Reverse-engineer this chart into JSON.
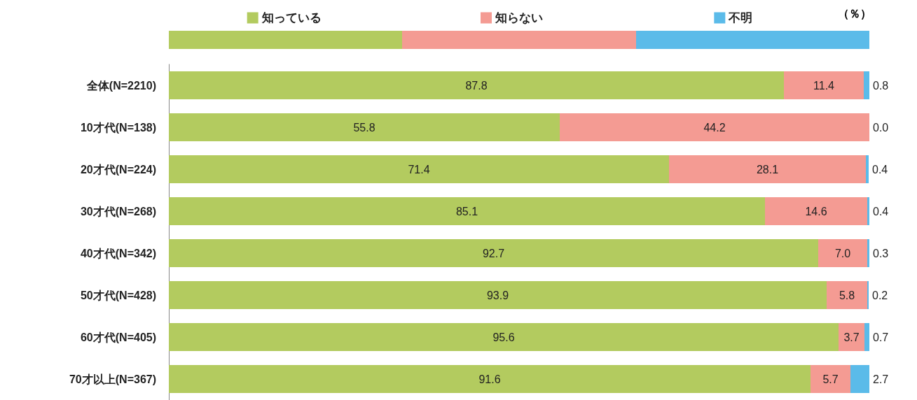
{
  "chart_data": {
    "type": "bar",
    "orientation": "horizontal",
    "stacked": true,
    "legend": "top",
    "tick_labels": "y",
    "grid": false,
    "annotations": [
      "（％）"
    ],
    "xlim": [
      0,
      100
    ],
    "categories": [
      "全体(N=2210)",
      "10才代(N=138)",
      "20才代(N=224)",
      "30才代(N=268)",
      "40才代(N=342)",
      "50才代(N=428)",
      "60才代(N=405)",
      "70才以上(N=367)"
    ],
    "series": [
      {
        "name": "知っている",
        "color": "#b3cb5f",
        "values": [
          87.8,
          55.8,
          71.4,
          85.1,
          92.7,
          93.9,
          95.6,
          91.6
        ],
        "value_labels": [
          "87.8",
          "55.8",
          "71.4",
          "85.1",
          "92.7",
          "93.9",
          "95.6",
          "91.6"
        ]
      },
      {
        "name": "知らない",
        "color": "#f49b93",
        "values": [
          11.4,
          44.2,
          28.1,
          14.6,
          7.0,
          5.8,
          3.7,
          5.7
        ],
        "value_labels": [
          "11.4",
          "44.2",
          "28.1",
          "14.6",
          "7.0",
          "5.8",
          "3.7",
          "5.7"
        ]
      },
      {
        "name": "不明",
        "color": "#5bbbe9",
        "values": [
          0.8,
          0.0,
          0.4,
          0.4,
          0.3,
          0.2,
          0.7,
          2.7
        ],
        "value_labels": [
          "0.8",
          "0.0",
          "0.4",
          "0.4",
          "0.3",
          "0.2",
          "0.7",
          "2.7"
        ]
      }
    ]
  }
}
